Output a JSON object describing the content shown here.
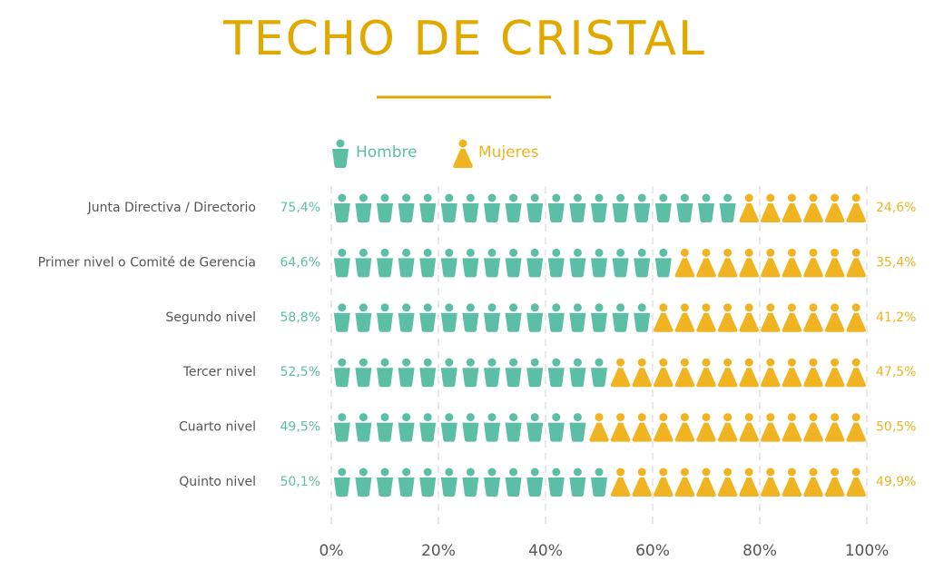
{
  "chart_data": {
    "type": "bar",
    "orientation": "horizontal",
    "stacked": true,
    "title": "TECHO DE CRISTAL",
    "categories": [
      "Junta Directiva / Directorio",
      "Primer nivel o Comité de Gerencia",
      "Segundo nivel",
      "Tercer nivel",
      "Cuarto nivel",
      "Quinto nivel"
    ],
    "series": [
      {
        "name": "Hombre",
        "color": "#5cbfa5",
        "values": [
          75.4,
          64.6,
          58.8,
          52.5,
          49.5,
          50.1
        ],
        "value_labels": [
          "75,4%",
          "64,6%",
          "58,8%",
          "52,5%",
          "49,5%",
          "50,1%"
        ]
      },
      {
        "name": "Mujeres",
        "color": "#f0b422",
        "values": [
          24.6,
          35.4,
          41.2,
          47.5,
          50.5,
          49.9
        ],
        "value_labels": [
          "24,6%",
          "35,4%",
          "41,2%",
          "47,5%",
          "50,5%",
          "49,9%"
        ]
      }
    ],
    "xlim": [
      0,
      100
    ],
    "xticks": [
      {
        "value": 0,
        "label": "0%"
      },
      {
        "value": 20,
        "label": "20%"
      },
      {
        "value": 40,
        "label": "40%"
      },
      {
        "value": 60,
        "label": "60%"
      },
      {
        "value": 80,
        "label": "80%"
      },
      {
        "value": 100,
        "label": "100%"
      }
    ],
    "grid": true,
    "legend": "top"
  }
}
